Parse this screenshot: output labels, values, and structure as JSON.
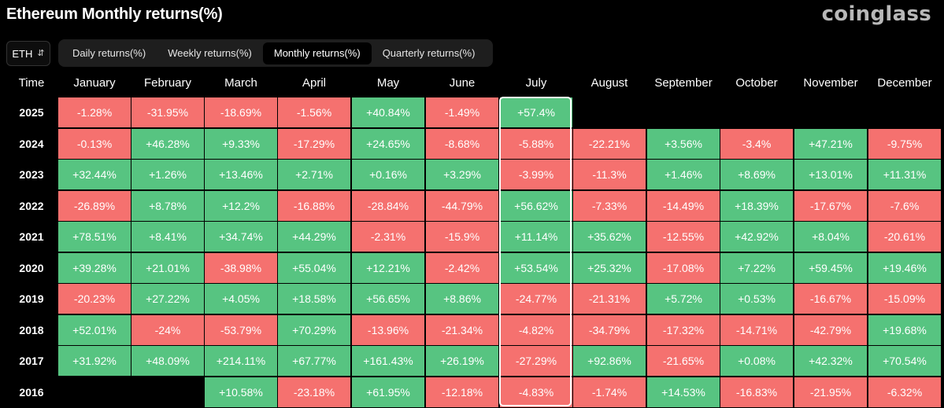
{
  "header": {
    "title": "Ethereum Monthly returns(%)",
    "brand": "coinglass"
  },
  "asset_selector": {
    "value": "ETH"
  },
  "tabs": [
    {
      "label": "Daily returns(%)",
      "active": false
    },
    {
      "label": "Weekly returns(%)",
      "active": false
    },
    {
      "label": "Monthly returns(%)",
      "active": true
    },
    {
      "label": "Quarterly returns(%)",
      "active": false
    }
  ],
  "table": {
    "time_label": "Time",
    "months": [
      "January",
      "February",
      "March",
      "April",
      "May",
      "June",
      "July",
      "August",
      "September",
      "October",
      "November",
      "December"
    ],
    "highlight_month": "July",
    "colors": {
      "positive": "#57c481",
      "negative": "#f5716f"
    },
    "rows": [
      {
        "year": "2025",
        "values": [
          "-1.28%",
          "-31.95%",
          "-18.69%",
          "-1.56%",
          "+40.84%",
          "-1.49%",
          "+57.4%",
          "",
          "",
          "",
          "",
          ""
        ]
      },
      {
        "year": "2024",
        "values": [
          "-0.13%",
          "+46.28%",
          "+9.33%",
          "-17.29%",
          "+24.65%",
          "-8.68%",
          "-5.88%",
          "-22.21%",
          "+3.56%",
          "-3.4%",
          "+47.21%",
          "-9.75%"
        ]
      },
      {
        "year": "2023",
        "values": [
          "+32.44%",
          "+1.26%",
          "+13.46%",
          "+2.71%",
          "+0.16%",
          "+3.29%",
          "-3.99%",
          "-11.3%",
          "+1.46%",
          "+8.69%",
          "+13.01%",
          "+11.31%"
        ]
      },
      {
        "year": "2022",
        "values": [
          "-26.89%",
          "+8.78%",
          "+12.2%",
          "-16.88%",
          "-28.84%",
          "-44.79%",
          "+56.62%",
          "-7.33%",
          "-14.49%",
          "+18.39%",
          "-17.67%",
          "-7.6%"
        ]
      },
      {
        "year": "2021",
        "values": [
          "+78.51%",
          "+8.41%",
          "+34.74%",
          "+44.29%",
          "-2.31%",
          "-15.9%",
          "+11.14%",
          "+35.62%",
          "-12.55%",
          "+42.92%",
          "+8.04%",
          "-20.61%"
        ]
      },
      {
        "year": "2020",
        "values": [
          "+39.28%",
          "+21.01%",
          "-38.98%",
          "+55.04%",
          "+12.21%",
          "-2.42%",
          "+53.54%",
          "+25.32%",
          "-17.08%",
          "+7.22%",
          "+59.45%",
          "+19.46%"
        ]
      },
      {
        "year": "2019",
        "values": [
          "-20.23%",
          "+27.22%",
          "+4.05%",
          "+18.58%",
          "+56.65%",
          "+8.86%",
          "-24.77%",
          "-21.31%",
          "+5.72%",
          "+0.53%",
          "-16.67%",
          "-15.09%"
        ]
      },
      {
        "year": "2018",
        "values": [
          "+52.01%",
          "-24%",
          "-53.79%",
          "+70.29%",
          "-13.96%",
          "-21.34%",
          "-4.82%",
          "-34.79%",
          "-17.32%",
          "-14.71%",
          "-42.79%",
          "+19.68%"
        ]
      },
      {
        "year": "2017",
        "values": [
          "+31.92%",
          "+48.09%",
          "+214.11%",
          "+67.77%",
          "+161.43%",
          "+26.19%",
          "-27.29%",
          "+92.86%",
          "-21.65%",
          "+0.08%",
          "+42.32%",
          "+70.54%"
        ]
      },
      {
        "year": "2016",
        "values": [
          "",
          "",
          "+10.58%",
          "-23.18%",
          "+61.95%",
          "-12.18%",
          "-4.83%",
          "-1.74%",
          "+14.53%",
          "-16.83%",
          "-21.95%",
          "-6.32%"
        ]
      }
    ]
  }
}
